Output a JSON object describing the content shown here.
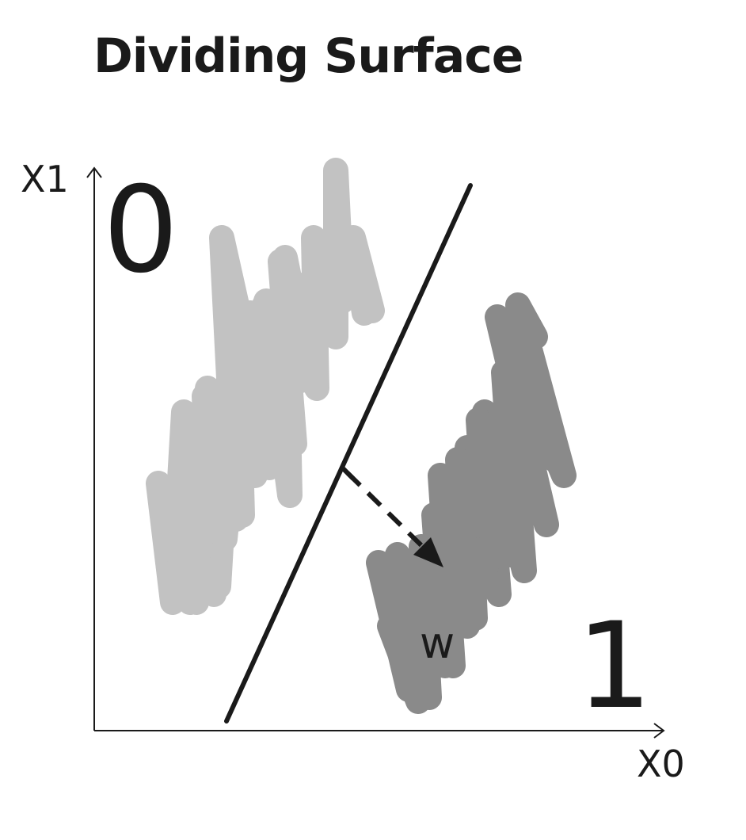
{
  "title": "Dividing Surface",
  "axes": {
    "x_label": "X0",
    "y_label": "X1"
  },
  "classes": {
    "class_0_label": "0",
    "class_1_label": "1",
    "class_0_color": "#c2c2c2",
    "class_1_color": "#8a8a8a"
  },
  "normal_vector": {
    "label": "w"
  },
  "line_color": "#1a1a1a"
}
